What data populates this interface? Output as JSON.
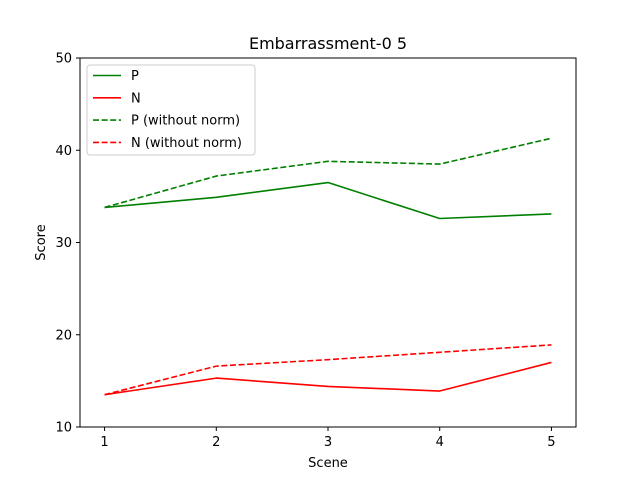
{
  "chart_data": {
    "type": "line",
    "title": "Embarrassment-0 5",
    "xlabel": "Scene",
    "ylabel": "Score",
    "x": [
      1,
      2,
      3,
      4,
      5
    ],
    "xlim": [
      0.78,
      5.22
    ],
    "ylim": [
      10,
      50
    ],
    "xticks": [
      1,
      2,
      3,
      4,
      5
    ],
    "yticks": [
      10,
      20,
      30,
      40,
      50
    ],
    "grid": false,
    "legend_position": "top-left",
    "series": [
      {
        "name": "P",
        "values": [
          33.8,
          34.9,
          36.5,
          32.6,
          33.1
        ],
        "color": "#008000",
        "dash": "solid"
      },
      {
        "name": "N",
        "values": [
          13.5,
          15.3,
          14.4,
          13.9,
          17.0
        ],
        "color": "#ff0000",
        "dash": "solid"
      },
      {
        "name": "P (without norm)",
        "values": [
          33.8,
          37.2,
          38.8,
          38.5,
          41.3
        ],
        "color": "#008000",
        "dash": "dashed"
      },
      {
        "name": "N (without norm)",
        "values": [
          13.5,
          16.6,
          17.3,
          18.1,
          18.9
        ],
        "color": "#ff0000",
        "dash": "dashed"
      }
    ]
  }
}
